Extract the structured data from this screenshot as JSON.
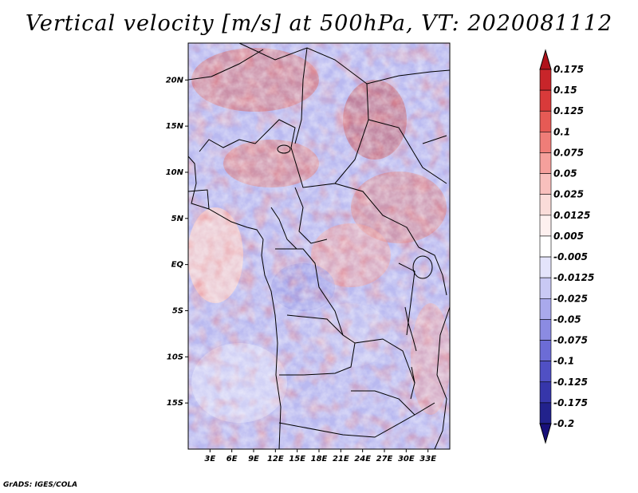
{
  "title": "Vertical velocity [m/s] at 500hPa, VT: 2020081112",
  "credit": "GrADS: IGES/COLA",
  "map": {
    "lon_range": [
      0,
      36
    ],
    "lat_range": [
      -20,
      24
    ],
    "lat_labels": [
      "20N",
      "15N",
      "10N",
      "5N",
      "EQ",
      "5S",
      "10S",
      "15S"
    ],
    "lat_values": [
      20,
      15,
      10,
      5,
      0,
      -5,
      -10,
      -15
    ],
    "lon_labels": [
      "3E",
      "6E",
      "9E",
      "12E",
      "15E",
      "18E",
      "21E",
      "24E",
      "27E",
      "30E",
      "33E"
    ],
    "lon_values": [
      3,
      6,
      9,
      12,
      15,
      18,
      21,
      24,
      27,
      30,
      33
    ]
  },
  "colorbar": {
    "labels": [
      "0.175",
      "0.15",
      "0.125",
      "0.1",
      "0.075",
      "0.05",
      "0.025",
      "0.0125",
      "0.005",
      "-0.005",
      "-0.0125",
      "-0.025",
      "-0.05",
      "-0.075",
      "-0.1",
      "-0.125",
      "-0.175",
      "-0.2"
    ],
    "colors": [
      "#b0121b",
      "#c8252a",
      "#d93a3a",
      "#e65a55",
      "#ef7d78",
      "#f5a09c",
      "#f8c0bd",
      "#fadcd9",
      "#fdf0ef",
      "#ffffff",
      "#e4e4fb",
      "#c9c9f4",
      "#a9a9ec",
      "#8b8be2",
      "#6c6cd6",
      "#5050c4",
      "#3636aa",
      "#22228c",
      "#18107a"
    ]
  },
  "colors": {
    "border": "#000000",
    "coast": "#000000"
  }
}
